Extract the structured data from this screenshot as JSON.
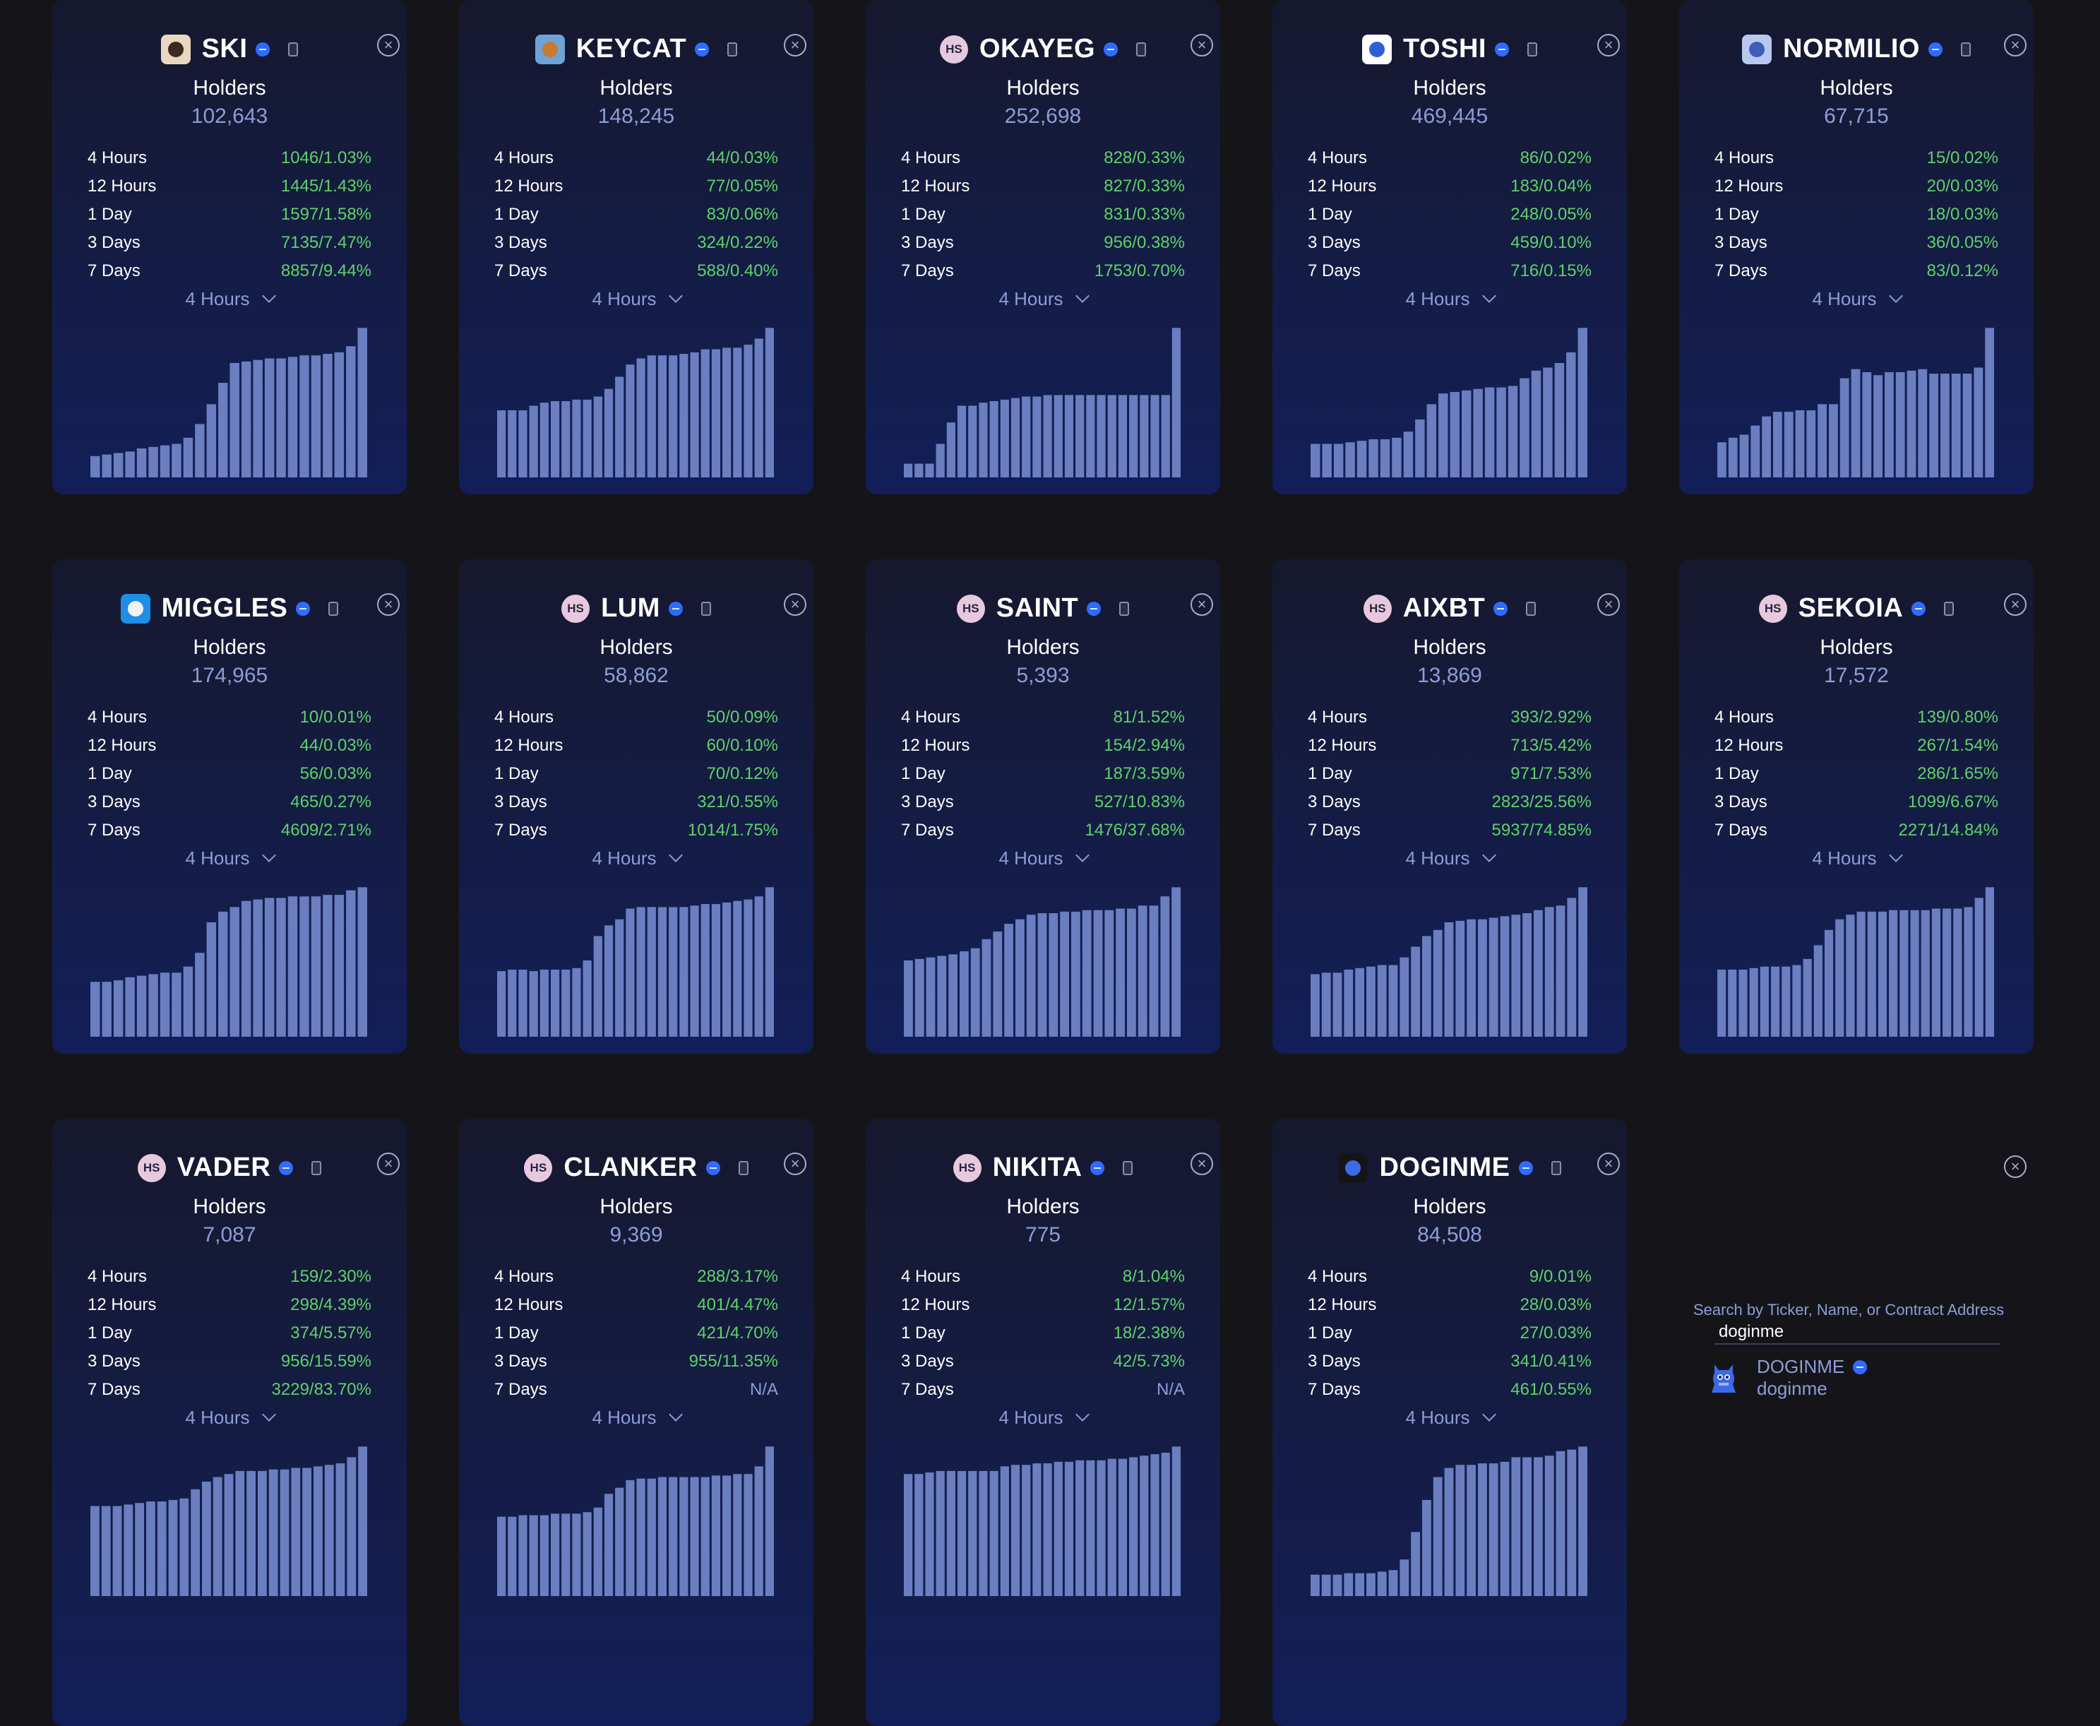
{
  "labels": {
    "holders": "Holders",
    "period": "4 Hours"
  },
  "tokens": [
    {
      "ticker": "SKI",
      "logo": "ski-logo",
      "holders": "102,643",
      "stats": [
        [
          "4 Hours",
          "1046/1.03%"
        ],
        [
          "12 Hours",
          "1445/1.43%"
        ],
        [
          "1 Day",
          "1597/1.58%"
        ],
        [
          "3 Days",
          "7135/7.47%"
        ],
        [
          "7 Days",
          "8857/9.44%"
        ]
      ],
      "bars": [
        14,
        15,
        16,
        17,
        19,
        20,
        21,
        22,
        26,
        35,
        48,
        62,
        75,
        76,
        77,
        78,
        78,
        79,
        80,
        80,
        81,
        82,
        86,
        98
      ]
    },
    {
      "ticker": "KEYCAT",
      "logo": "keycat-logo",
      "holders": "148,245",
      "stats": [
        [
          "4 Hours",
          "44/0.03%"
        ],
        [
          "12 Hours",
          "77/0.05%"
        ],
        [
          "1 Day",
          "83/0.06%"
        ],
        [
          "3 Days",
          "324/0.22%"
        ],
        [
          "7 Days",
          "588/0.40%"
        ]
      ],
      "bars": [
        44,
        44,
        44,
        47,
        49,
        50,
        50,
        51,
        51,
        53,
        58,
        66,
        74,
        78,
        80,
        80,
        80,
        81,
        82,
        84,
        84,
        85,
        85,
        87,
        91,
        98
      ]
    },
    {
      "ticker": "OKAYEG",
      "logo": "hs",
      "holders": "252,698",
      "stats": [
        [
          "4 Hours",
          "828/0.33%"
        ],
        [
          "12 Hours",
          "827/0.33%"
        ],
        [
          "1 Day",
          "831/0.33%"
        ],
        [
          "3 Days",
          "956/0.38%"
        ],
        [
          "7 Days",
          "1753/0.70%"
        ]
      ],
      "bars": [
        9,
        9,
        9,
        22,
        36,
        47,
        47,
        49,
        50,
        51,
        52,
        53,
        53,
        54,
        54,
        54,
        54,
        54,
        54,
        54,
        54,
        54,
        54,
        54,
        54,
        98
      ]
    },
    {
      "ticker": "TOSHI",
      "logo": "toshi-logo",
      "holders": "469,445",
      "stats": [
        [
          "4 Hours",
          "86/0.02%"
        ],
        [
          "12 Hours",
          "183/0.04%"
        ],
        [
          "1 Day",
          "248/0.05%"
        ],
        [
          "3 Days",
          "459/0.10%"
        ],
        [
          "7 Days",
          "716/0.15%"
        ]
      ],
      "bars": [
        22,
        22,
        22,
        23,
        24,
        25,
        25,
        26,
        30,
        38,
        48,
        55,
        56,
        57,
        58,
        59,
        59,
        60,
        65,
        70,
        72,
        75,
        82,
        98
      ]
    },
    {
      "ticker": "NORMILIO",
      "logo": "normilio-logo",
      "holders": "67,715",
      "stats": [
        [
          "4 Hours",
          "15/0.02%"
        ],
        [
          "12 Hours",
          "20/0.03%"
        ],
        [
          "1 Day",
          "18/0.03%"
        ],
        [
          "3 Days",
          "36/0.05%"
        ],
        [
          "7 Days",
          "83/0.12%"
        ]
      ],
      "bars": [
        23,
        26,
        28,
        34,
        40,
        43,
        43,
        44,
        44,
        48,
        48,
        65,
        71,
        69,
        67,
        69,
        69,
        70,
        71,
        68,
        68,
        68,
        68,
        72,
        98
      ]
    },
    {
      "ticker": "MIGGLES",
      "logo": "miggles-logo",
      "holders": "174,965",
      "stats": [
        [
          "4 Hours",
          "10/0.01%"
        ],
        [
          "12 Hours",
          "44/0.03%"
        ],
        [
          "1 Day",
          "56/0.03%"
        ],
        [
          "3 Days",
          "465/0.27%"
        ],
        [
          "7 Days",
          "4609/2.71%"
        ]
      ],
      "bars": [
        36,
        36,
        37,
        39,
        40,
        41,
        42,
        42,
        46,
        55,
        75,
        82,
        85,
        89,
        90,
        91,
        91,
        92,
        92,
        92,
        93,
        93,
        96,
        98
      ]
    },
    {
      "ticker": "LUM",
      "logo": "hs",
      "holders": "58,862",
      "stats": [
        [
          "4 Hours",
          "50/0.09%"
        ],
        [
          "12 Hours",
          "60/0.10%"
        ],
        [
          "1 Day",
          "70/0.12%"
        ],
        [
          "3 Days",
          "321/0.55%"
        ],
        [
          "7 Days",
          "1014/1.75%"
        ]
      ],
      "bars": [
        43,
        44,
        44,
        43,
        44,
        44,
        44,
        45,
        50,
        66,
        73,
        77,
        84,
        85,
        85,
        85,
        85,
        85,
        86,
        87,
        87,
        88,
        89,
        90,
        92,
        98
      ]
    },
    {
      "ticker": "SAINT",
      "logo": "hs",
      "holders": "5,393",
      "stats": [
        [
          "4 Hours",
          "81/1.52%"
        ],
        [
          "12 Hours",
          "154/2.94%"
        ],
        [
          "1 Day",
          "187/3.59%"
        ],
        [
          "3 Days",
          "527/10.83%"
        ],
        [
          "7 Days",
          "1476/37.68%"
        ]
      ],
      "bars": [
        50,
        51,
        52,
        53,
        54,
        56,
        58,
        64,
        69,
        74,
        77,
        80,
        81,
        81,
        82,
        82,
        83,
        83,
        83,
        84,
        84,
        86,
        86,
        92,
        98
      ]
    },
    {
      "ticker": "AIXBT",
      "logo": "hs",
      "holders": "13,869",
      "stats": [
        [
          "4 Hours",
          "393/2.92%"
        ],
        [
          "12 Hours",
          "713/5.42%"
        ],
        [
          "1 Day",
          "971/7.53%"
        ],
        [
          "3 Days",
          "2823/25.56%"
        ],
        [
          "7 Days",
          "5937/74.85%"
        ]
      ],
      "bars": [
        41,
        42,
        42,
        44,
        45,
        46,
        47,
        47,
        52,
        59,
        66,
        70,
        75,
        76,
        77,
        77,
        78,
        79,
        80,
        81,
        83,
        85,
        86,
        91,
        98
      ]
    },
    {
      "ticker": "SEKOIA",
      "logo": "hs",
      "holders": "17,572",
      "stats": [
        [
          "4 Hours",
          "139/0.80%"
        ],
        [
          "12 Hours",
          "267/1.54%"
        ],
        [
          "1 Day",
          "286/1.65%"
        ],
        [
          "3 Days",
          "1099/6.67%"
        ],
        [
          "7 Days",
          "2271/14.84%"
        ]
      ],
      "bars": [
        44,
        44,
        44,
        45,
        46,
        46,
        46,
        47,
        51,
        60,
        70,
        77,
        80,
        82,
        82,
        82,
        83,
        83,
        83,
        83,
        84,
        84,
        84,
        85,
        91,
        98
      ]
    },
    {
      "ticker": "VADER",
      "logo": "hs",
      "holders": "7,087",
      "stats": [
        [
          "4 Hours",
          "159/2.30%"
        ],
        [
          "12 Hours",
          "298/4.39%"
        ],
        [
          "1 Day",
          "374/5.57%"
        ],
        [
          "3 Days",
          "956/15.59%"
        ],
        [
          "7 Days",
          "3229/83.70%"
        ]
      ],
      "bars": [
        59,
        59,
        59,
        60,
        61,
        62,
        62,
        63,
        64,
        70,
        75,
        78,
        80,
        82,
        82,
        82,
        83,
        83,
        84,
        84,
        85,
        86,
        87,
        91,
        98
      ]
    },
    {
      "ticker": "CLANKER",
      "logo": "hs",
      "holders": "9,369",
      "stats": [
        [
          "4 Hours",
          "288/3.17%"
        ],
        [
          "12 Hours",
          "401/4.47%"
        ],
        [
          "1 Day",
          "421/4.70%"
        ],
        [
          "3 Days",
          "955/11.35%"
        ],
        [
          "7 Days",
          "N/A"
        ]
      ],
      "bars": [
        52,
        52,
        53,
        53,
        53,
        54,
        54,
        54,
        55,
        58,
        67,
        71,
        76,
        77,
        77,
        78,
        78,
        78,
        78,
        78,
        79,
        79,
        80,
        80,
        85,
        98
      ]
    },
    {
      "ticker": "NIKITA",
      "logo": "hs",
      "holders": "775",
      "stats": [
        [
          "4 Hours",
          "8/1.04%"
        ],
        [
          "12 Hours",
          "12/1.57%"
        ],
        [
          "1 Day",
          "18/2.38%"
        ],
        [
          "3 Days",
          "42/5.73%"
        ],
        [
          "7 Days",
          "N/A"
        ]
      ],
      "bars": [
        80,
        80,
        81,
        82,
        82,
        82,
        82,
        82,
        82,
        85,
        86,
        86,
        87,
        87,
        88,
        88,
        89,
        89,
        89,
        90,
        90,
        91,
        92,
        93,
        94,
        98
      ]
    },
    {
      "ticker": "DOGINME",
      "logo": "doginme-logo",
      "holders": "84,508",
      "stats": [
        [
          "4 Hours",
          "9/0.01%"
        ],
        [
          "12 Hours",
          "28/0.03%"
        ],
        [
          "1 Day",
          "27/0.03%"
        ],
        [
          "3 Days",
          "341/0.41%"
        ],
        [
          "7 Days",
          "461/0.55%"
        ]
      ],
      "bars": [
        14,
        14,
        14,
        15,
        15,
        15,
        16,
        17,
        24,
        42,
        63,
        78,
        84,
        86,
        86,
        87,
        87,
        88,
        91,
        91,
        91,
        92,
        95,
        96,
        98
      ]
    }
  ],
  "search": {
    "label": "Search by Ticker, Name, or Contract Address",
    "value": "doginme",
    "result": {
      "ticker": "DOGINME",
      "name": "doginme",
      "logo": "doginme-logo"
    }
  },
  "colors": {
    "background": "#151519",
    "bar": "#6a7ec0",
    "positive": "#5ed26a",
    "muted": "#8d9dd6",
    "verified": "#2f6bff"
  }
}
